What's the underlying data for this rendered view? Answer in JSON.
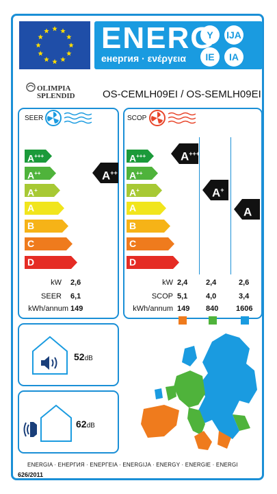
{
  "header": {
    "energy_word": "ENERG",
    "energy_sub": "енергия · ενέργεια",
    "languages": [
      "Y",
      "IJA",
      "IE",
      "IA"
    ],
    "flag_color": "#1f4ea8",
    "accent_color": "#1a9be0"
  },
  "brand": {
    "line1": "OLIMPIA",
    "line2": "SPLENDID"
  },
  "model": "OS-CEMLH09EI / OS-SEMLH09EI",
  "classes": [
    {
      "letter": "A",
      "sup": "+++",
      "color": "#1b9a3a"
    },
    {
      "letter": "A",
      "sup": "++",
      "color": "#4fb33b"
    },
    {
      "letter": "A",
      "sup": "+",
      "color": "#a7c934"
    },
    {
      "letter": "A",
      "sup": "",
      "color": "#f1e51c"
    },
    {
      "letter": "B",
      "sup": "",
      "color": "#f6b317"
    },
    {
      "letter": "C",
      "sup": "",
      "color": "#ef7b1d"
    },
    {
      "letter": "D",
      "sup": "",
      "color": "#e52c24"
    }
  ],
  "seer": {
    "label": "SEER",
    "rating": {
      "letter": "A",
      "sup": "++"
    },
    "rows": [
      {
        "label": "kW",
        "value": "2,6"
      },
      {
        "label": "SEER",
        "value": "6,1"
      },
      {
        "label": "kWh/annum",
        "value": "149"
      }
    ]
  },
  "scop": {
    "label": "SCOP",
    "ratings": [
      {
        "letter": "A",
        "sup": "+++"
      },
      {
        "letter": "A",
        "sup": "+"
      },
      {
        "letter": "A",
        "sup": ""
      }
    ],
    "labels": [
      "kW",
      "SCOP",
      "kWh/annum"
    ],
    "columns": [
      {
        "kw": "2,4",
        "scop": "5,1",
        "kwh": "149",
        "color": "#ef7b1d"
      },
      {
        "kw": "2,4",
        "scop": "4,0",
        "kwh": "840",
        "color": "#4fb33b"
      },
      {
        "kw": "2,6",
        "scop": "3,4",
        "kwh": "1606",
        "color": "#1a9be0"
      }
    ]
  },
  "noise": {
    "indoor": {
      "value": "52",
      "unit": "dB"
    },
    "outdoor": {
      "value": "62",
      "unit": "dB"
    }
  },
  "footer": {
    "languages": "ENERGIA · ЕНЕРГИЯ · ΕΝΕΡΓΕΙΑ · ENERGIJA · ENERGY · ENERGIE · ENERGI",
    "regulation": "626/2011"
  }
}
